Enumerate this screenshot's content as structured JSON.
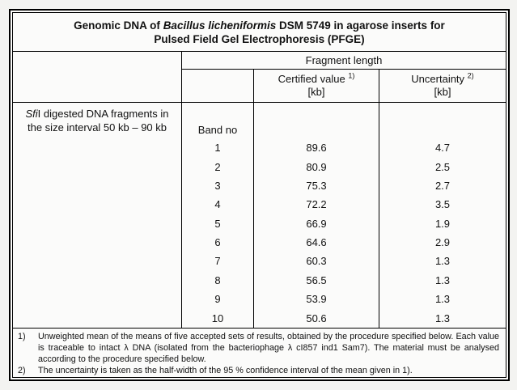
{
  "title": {
    "line1_prefix": "Genomic DNA of ",
    "line1_species": "Bacillus licheniformis",
    "line1_suffix": " DSM 5749 in agarose inserts for",
    "line2": "Pulsed Field Gel Electrophoresis (PFGE)"
  },
  "columns": {
    "group_header": "Fragment length",
    "certified_label": "Certified value",
    "certified_footnote_ref": "1)",
    "certified_unit": "[kb]",
    "uncertainty_label": "Uncertainty",
    "uncertainty_footnote_ref": "2)",
    "uncertainty_unit": "[kb]"
  },
  "row_group_label": {
    "enzyme_italic": "Sfi",
    "line1_rest": "I digested DNA fragments in",
    "line2": "the size interval 50 kb – 90 kb"
  },
  "band_column_header": "Band no",
  "rows": [
    {
      "band": "1",
      "certified": "89.6",
      "uncertainty": "4.7"
    },
    {
      "band": "2",
      "certified": "80.9",
      "uncertainty": "2.5"
    },
    {
      "band": "3",
      "certified": "75.3",
      "uncertainty": "2.7"
    },
    {
      "band": "4",
      "certified": "72.2",
      "uncertainty": "3.5"
    },
    {
      "band": "5",
      "certified": "66.9",
      "uncertainty": "1.9"
    },
    {
      "band": "6",
      "certified": "64.6",
      "uncertainty": "2.9"
    },
    {
      "band": "7",
      "certified": "60.3",
      "uncertainty": "1.3"
    },
    {
      "band": "8",
      "certified": "56.5",
      "uncertainty": "1.3"
    },
    {
      "band": "9",
      "certified": "53.9",
      "uncertainty": "1.3"
    },
    {
      "band": "10",
      "certified": "50.6",
      "uncertainty": "1.3"
    }
  ],
  "footnotes": [
    {
      "marker": "1)",
      "text": "Unweighted mean of the means of five accepted sets of results, obtained by the procedure specified below. Each value is traceable to intact λ DNA (isolated from the bacteriophage λ cI857 ind1 Sam7). The material must be analysed according to the procedure specified below."
    },
    {
      "marker": "2)",
      "text": "The uncertainty is taken as the half-width of the 95 % confidence interval of the mean given in 1)."
    }
  ],
  "colors": {
    "page_background": "#f3f3f1",
    "table_background": "#fbfbfa",
    "border": "#000000",
    "text": "#111111"
  }
}
